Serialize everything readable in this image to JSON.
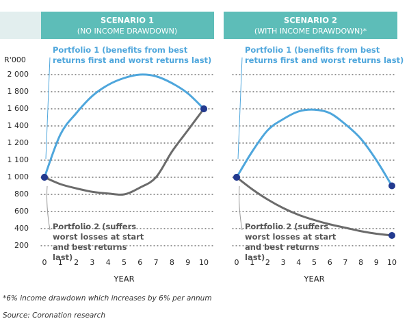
{
  "chart_data": [
    {
      "type": "line",
      "title": "SCENARIO 1",
      "subtitle": "(NO INCOME DRAWDOWN)",
      "ylabel": "R'000",
      "xlabel": "YEAR",
      "x": [
        0,
        1,
        2,
        3,
        4,
        5,
        6,
        7,
        8,
        9,
        10
      ],
      "xlim": [
        0,
        10
      ],
      "xticks": [
        0,
        1,
        2,
        3,
        4,
        5,
        6,
        7,
        8,
        9,
        10
      ],
      "ylim": [
        200,
        2000
      ],
      "ytick_labels": true,
      "yticks": [
        200,
        400,
        600,
        800,
        {
          "value": 1000,
          "label": "1 000"
        },
        {
          "value": 1100,
          "label": "1 100"
        },
        {
          "value": 1200,
          "label": "1 200"
        },
        {
          "value": 1400,
          "label": "1 400"
        },
        {
          "value": 1600,
          "label": "1 600"
        },
        {
          "value": 1800,
          "label": "1 800"
        },
        {
          "value": 2000,
          "label": "2 000"
        }
      ],
      "series": [
        {
          "name": "Portfolio 1 (benefits from best returns first and worst returns last)",
          "color": "#4ea6dc",
          "values": [
            1000,
            1300,
            1550,
            1750,
            1880,
            1960,
            2000,
            1980,
            1900,
            1780,
            1600
          ]
        },
        {
          "name": "Portfolio 2 (suffers worst losses at start and best returns last)",
          "color": "#6b6b6b",
          "values": [
            1000,
            920,
            870,
            830,
            810,
            800,
            880,
            1000,
            1150,
            1350,
            1600
          ]
        }
      ]
    },
    {
      "type": "line",
      "title": "SCENARIO 2",
      "subtitle": "(WITH INCOME DRAWDOWN)*",
      "xlabel": "YEAR",
      "x": [
        0,
        1,
        2,
        3,
        4,
        5,
        6,
        7,
        8,
        9,
        10
      ],
      "xlim": [
        0,
        10
      ],
      "xticks": [
        0,
        1,
        2,
        3,
        4,
        5,
        6,
        7,
        8,
        9,
        10
      ],
      "ylim": [
        200,
        2000
      ],
      "ytick_labels": false,
      "yticks": [
        200,
        400,
        600,
        800,
        1000,
        1100,
        1200,
        1400,
        1600,
        1800,
        2000
      ],
      "series": [
        {
          "name": "Portfolio 1 (benefits from best returns first and worst returns last)",
          "color": "#4ea6dc",
          "values": [
            1000,
            1150,
            1350,
            1480,
            1570,
            1590,
            1550,
            1420,
            1250,
            1100,
            900
          ]
        },
        {
          "name": "Portfolio 2 (suffers worst losses at start and best returns last)",
          "color": "#6b6b6b",
          "values": [
            1000,
            860,
            740,
            640,
            560,
            500,
            450,
            410,
            370,
            340,
            320
          ]
        }
      ]
    }
  ],
  "footnote": "*6% income drawdown which increases by 6% per annum",
  "source": "Source: Coronation research"
}
